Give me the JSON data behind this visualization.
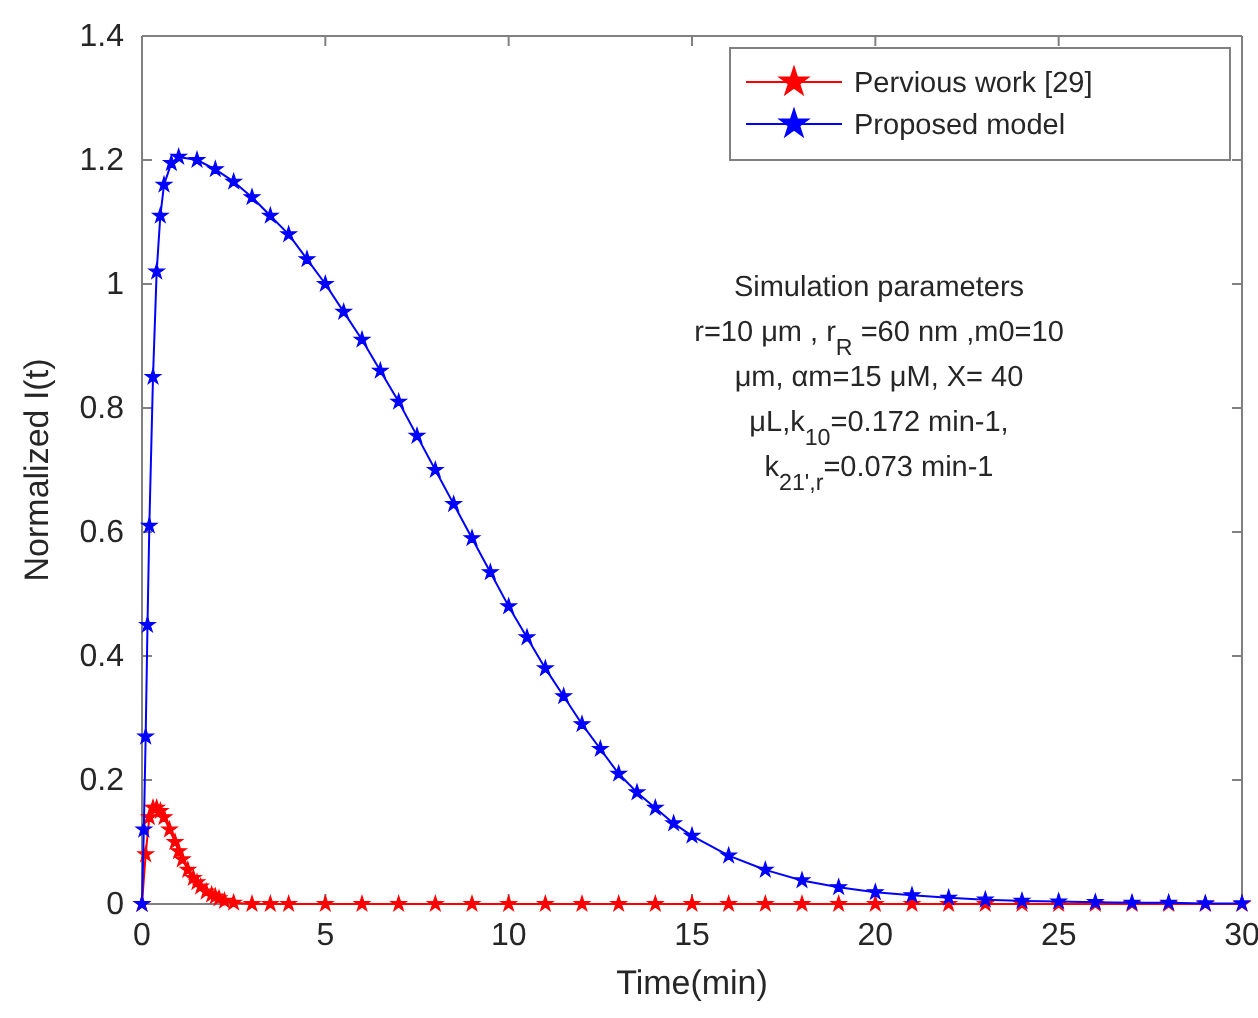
{
  "chart_data": {
    "type": "line",
    "xlabel": "Time(min)",
    "ylabel": "Normalized I(t)",
    "xlim": [
      0,
      30
    ],
    "xticks": [
      0,
      5,
      10,
      15,
      20,
      25,
      30
    ],
    "ylim": [
      0,
      1.4
    ],
    "yticks": [
      0,
      0.2,
      0.4,
      0.6,
      0.8,
      1,
      1.2,
      1.4
    ],
    "grid": false,
    "legend": "top right",
    "marker": "star",
    "line_style": "solid",
    "annotations": [
      "Simulation parameters",
      "r=10 μm , r$_{R}$ =60 nm ,m0=10",
      "μm, αm=15 μM, Χ= 40",
      "μL,k$_{10}$=0.172 min-1,",
      "k$_{21',r}$=0.073 min-1"
    ],
    "series": [
      {
        "name": "Pervious work [29]",
        "color": "#ff0000",
        "x": [
          0,
          0.1,
          0.2,
          0.3,
          0.4,
          0.5,
          0.6,
          0.75,
          0.9,
          1,
          1.1,
          1.25,
          1.4,
          1.5,
          1.6,
          1.75,
          1.9,
          2,
          2.1,
          2.25,
          2.5,
          3,
          3.5,
          4,
          5,
          6,
          7,
          8,
          9,
          10,
          11,
          12,
          13,
          14,
          15,
          16,
          17,
          18,
          19,
          20,
          21,
          22,
          23,
          24,
          25,
          26,
          27,
          28,
          29,
          30
        ],
        "values": [
          0,
          0.08,
          0.14,
          0.155,
          0.155,
          0.15,
          0.14,
          0.12,
          0.1,
          0.085,
          0.072,
          0.055,
          0.042,
          0.035,
          0.028,
          0.02,
          0.015,
          0.012,
          0.009,
          0.005,
          0.002,
          0,
          0,
          0,
          0,
          0,
          0,
          0,
          0,
          0,
          0,
          0,
          0,
          0,
          0,
          0,
          0,
          0,
          0,
          0,
          0,
          0,
          0,
          0,
          0,
          0,
          0,
          0,
          0,
          0
        ]
      },
      {
        "name": "Proposed model",
        "color": "#0000ff",
        "x": [
          0,
          0.05,
          0.1,
          0.15,
          0.2,
          0.3,
          0.4,
          0.5,
          0.6,
          0.8,
          1,
          1.5,
          2,
          2.5,
          3,
          3.5,
          4,
          4.5,
          5,
          5.5,
          6,
          6.5,
          7,
          7.5,
          8,
          8.5,
          9,
          9.5,
          10,
          10.5,
          11,
          11.5,
          12,
          12.5,
          13,
          13.5,
          14,
          14.5,
          15,
          16,
          17,
          18,
          19,
          20,
          21,
          22,
          23,
          24,
          25,
          26,
          27,
          28,
          29,
          30
        ],
        "values": [
          0,
          0.12,
          0.27,
          0.45,
          0.61,
          0.85,
          1.02,
          1.11,
          1.16,
          1.195,
          1.205,
          1.2,
          1.185,
          1.165,
          1.14,
          1.11,
          1.08,
          1.04,
          1.0,
          0.955,
          0.91,
          0.86,
          0.81,
          0.755,
          0.7,
          0.645,
          0.59,
          0.535,
          0.48,
          0.43,
          0.38,
          0.335,
          0.29,
          0.25,
          0.21,
          0.18,
          0.155,
          0.13,
          0.11,
          0.078,
          0.055,
          0.038,
          0.027,
          0.019,
          0.014,
          0.01,
          0.007,
          0.005,
          0.004,
          0.003,
          0.002,
          0.002,
          0.001,
          0.001
        ]
      }
    ]
  }
}
